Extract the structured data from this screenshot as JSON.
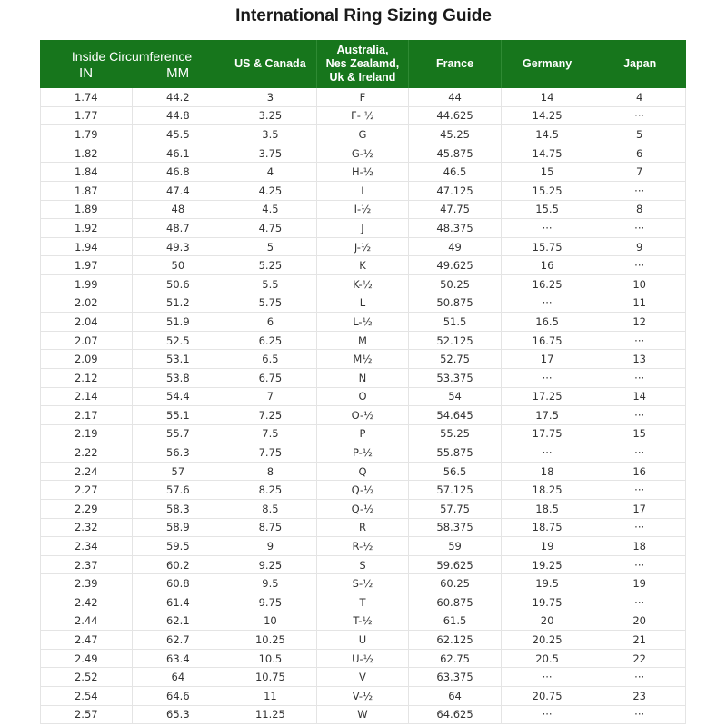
{
  "title": "International Ring Sizing Guide",
  "header_color": "#17761c",
  "header": {
    "inside_circumference": "Inside Circumference",
    "in": "IN",
    "mm": "MM",
    "us_canada": "US & Canada",
    "aus_line1": "Australia,",
    "aus_line2": "Nes Zealamd,",
    "aus_line3": "Uk & Ireland",
    "france": "France",
    "germany": "Germany",
    "japan": "Japan"
  },
  "rows": [
    [
      "1.74",
      "44.2",
      "3",
      "F",
      "44",
      "14",
      "4"
    ],
    [
      "1.77",
      "44.8",
      "3.25",
      "F- ½",
      "44.625",
      "14.25",
      "···"
    ],
    [
      "1.79",
      "45.5",
      "3.5",
      "G",
      "45.25",
      "14.5",
      "5"
    ],
    [
      "1.82",
      "46.1",
      "3.75",
      "G-½",
      "45.875",
      "14.75",
      "6"
    ],
    [
      "1.84",
      "46.8",
      "4",
      "H-½",
      "46.5",
      "15",
      "7"
    ],
    [
      "1.87",
      "47.4",
      "4.25",
      "I",
      "47.125",
      "15.25",
      "···"
    ],
    [
      "1.89",
      "48",
      "4.5",
      "I-½",
      "47.75",
      "15.5",
      "8"
    ],
    [
      "1.92",
      "48.7",
      "4.75",
      "J",
      "48.375",
      "···",
      "···"
    ],
    [
      "1.94",
      "49.3",
      "5",
      "J-½",
      "49",
      "15.75",
      "9"
    ],
    [
      "1.97",
      "50",
      "5.25",
      "K",
      "49.625",
      "16",
      "···"
    ],
    [
      "1.99",
      "50.6",
      "5.5",
      "K-½",
      "50.25",
      "16.25",
      "10"
    ],
    [
      "2.02",
      "51.2",
      "5.75",
      "L",
      "50.875",
      "···",
      "11"
    ],
    [
      "2.04",
      "51.9",
      "6",
      "L-½",
      "51.5",
      "16.5",
      "12"
    ],
    [
      "2.07",
      "52.5",
      "6.25",
      "M",
      "52.125",
      "16.75",
      "···"
    ],
    [
      "2.09",
      "53.1",
      "6.5",
      "M½",
      "52.75",
      "17",
      "13"
    ],
    [
      "2.12",
      "53.8",
      "6.75",
      "N",
      "53.375",
      "···",
      "···"
    ],
    [
      "2.14",
      "54.4",
      "7",
      "O",
      "54",
      "17.25",
      "14"
    ],
    [
      "2.17",
      "55.1",
      "7.25",
      "O-½",
      "54.645",
      "17.5",
      "···"
    ],
    [
      "2.19",
      "55.7",
      "7.5",
      "P",
      "55.25",
      "17.75",
      "15"
    ],
    [
      "2.22",
      "56.3",
      "7.75",
      "P-½",
      "55.875",
      "···",
      "···"
    ],
    [
      "2.24",
      "57",
      "8",
      "Q",
      "56.5",
      "18",
      "16"
    ],
    [
      "2.27",
      "57.6",
      "8.25",
      "Q-½",
      "57.125",
      "18.25",
      "···"
    ],
    [
      "2.29",
      "58.3",
      "8.5",
      "Q-½",
      "57.75",
      "18.5",
      "17"
    ],
    [
      "2.32",
      "58.9",
      "8.75",
      "R",
      "58.375",
      "18.75",
      "···"
    ],
    [
      "2.34",
      "59.5",
      "9",
      "R-½",
      "59",
      "19",
      "18"
    ],
    [
      "2.37",
      "60.2",
      "9.25",
      "S",
      "59.625",
      "19.25",
      "···"
    ],
    [
      "2.39",
      "60.8",
      "9.5",
      "S-½",
      "60.25",
      "19.5",
      "19"
    ],
    [
      "2.42",
      "61.4",
      "9.75",
      "T",
      "60.875",
      "19.75",
      "···"
    ],
    [
      "2.44",
      "62.1",
      "10",
      "T-½",
      "61.5",
      "20",
      "20"
    ],
    [
      "2.47",
      "62.7",
      "10.25",
      "U",
      "62.125",
      "20.25",
      "21"
    ],
    [
      "2.49",
      "63.4",
      "10.5",
      "U-½",
      "62.75",
      "20.5",
      "22"
    ],
    [
      "2.52",
      "64",
      "10.75",
      "V",
      "63.375",
      "···",
      "···"
    ],
    [
      "2.54",
      "64.6",
      "11",
      "V-½",
      "64",
      "20.75",
      "23"
    ],
    [
      "2.57",
      "65.3",
      "11.25",
      "W",
      "64.625",
      "···",
      "···"
    ]
  ]
}
